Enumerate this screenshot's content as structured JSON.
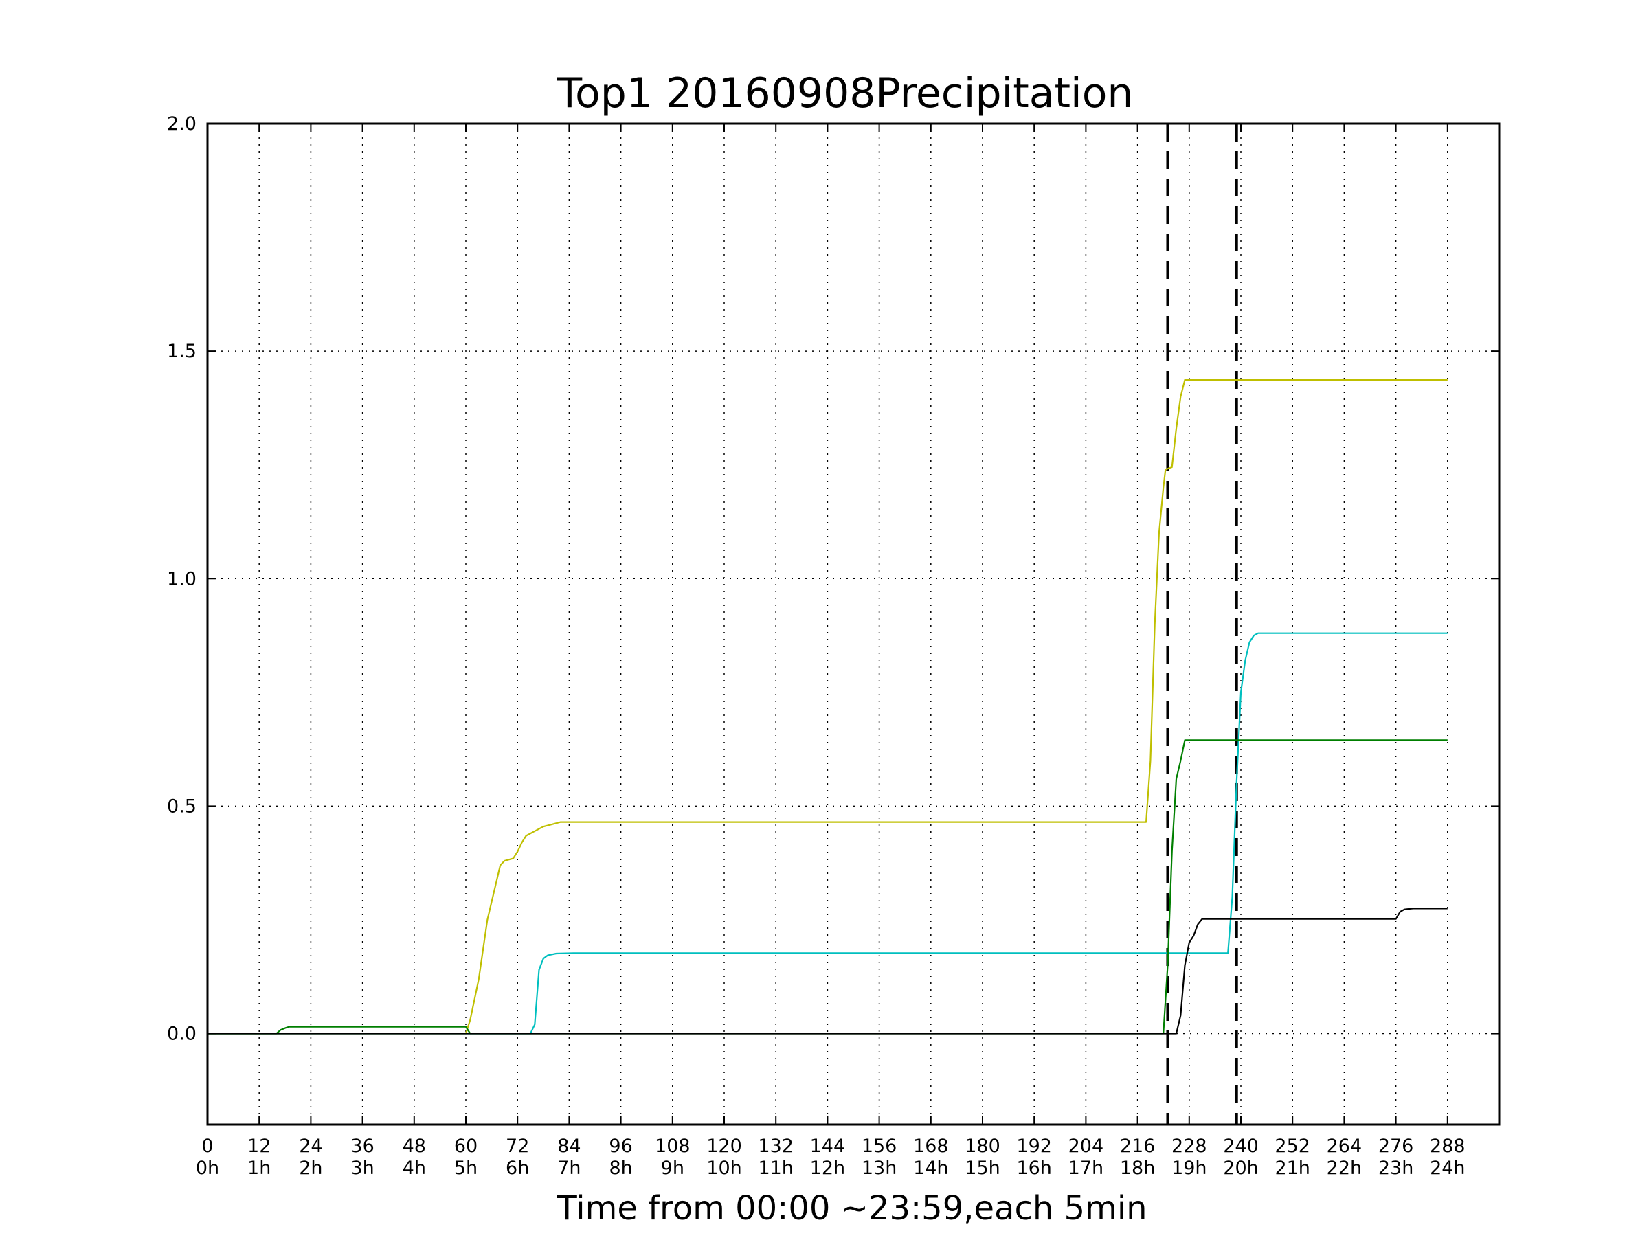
{
  "chart_data": {
    "type": "line",
    "title": "Top1 20160908Precipitation",
    "xlabel": "Time from 00:00 ~23:59,each 5min",
    "ylabel": "",
    "xlim": [
      0,
      300
    ],
    "ylim": [
      -0.2,
      2.0
    ],
    "grid": true,
    "grid_style": "dotted",
    "legend": "none",
    "x_ticks": [
      {
        "value": 0,
        "label1": "0",
        "label2": "0h"
      },
      {
        "value": 12,
        "label1": "12",
        "label2": "1h"
      },
      {
        "value": 24,
        "label1": "24",
        "label2": "2h"
      },
      {
        "value": 36,
        "label1": "36",
        "label2": "3h"
      },
      {
        "value": 48,
        "label1": "48",
        "label2": "4h"
      },
      {
        "value": 60,
        "label1": "60",
        "label2": "5h"
      },
      {
        "value": 72,
        "label1": "72",
        "label2": "6h"
      },
      {
        "value": 84,
        "label1": "84",
        "label2": "7h"
      },
      {
        "value": 96,
        "label1": "96",
        "label2": "8h"
      },
      {
        "value": 108,
        "label1": "108",
        "label2": "9h"
      },
      {
        "value": 120,
        "label1": "120",
        "label2": "10h"
      },
      {
        "value": 132,
        "label1": "132",
        "label2": "11h"
      },
      {
        "value": 144,
        "label1": "144",
        "label2": "12h"
      },
      {
        "value": 156,
        "label1": "156",
        "label2": "13h"
      },
      {
        "value": 168,
        "label1": "168",
        "label2": "14h"
      },
      {
        "value": 180,
        "label1": "180",
        "label2": "15h"
      },
      {
        "value": 192,
        "label1": "192",
        "label2": "16h"
      },
      {
        "value": 204,
        "label1": "204",
        "label2": "17h"
      },
      {
        "value": 216,
        "label1": "216",
        "label2": "18h"
      },
      {
        "value": 228,
        "label1": "228",
        "label2": "19h"
      },
      {
        "value": 240,
        "label1": "240",
        "label2": "20h"
      },
      {
        "value": 252,
        "label1": "252",
        "label2": "21h"
      },
      {
        "value": 264,
        "label1": "264",
        "label2": "22h"
      },
      {
        "value": 276,
        "label1": "276",
        "label2": "23h"
      },
      {
        "value": 288,
        "label1": "288",
        "label2": "24h"
      }
    ],
    "y_ticks": [
      {
        "value": 0.0,
        "label": "0.0"
      },
      {
        "value": 0.5,
        "label": "0.5"
      },
      {
        "value": 1.0,
        "label": "1.0"
      },
      {
        "value": 1.5,
        "label": "1.5"
      },
      {
        "value": 2.0,
        "label": "2.0"
      }
    ],
    "vlines": [
      {
        "x": 223,
        "style": "dashed",
        "color": "#000000"
      },
      {
        "x": 239,
        "style": "dashed",
        "color": "#000000"
      }
    ],
    "series": [
      {
        "color": "#bfbf00",
        "points": [
          [
            0,
            0
          ],
          [
            60,
            0
          ],
          [
            61,
            0.03
          ],
          [
            63,
            0.12
          ],
          [
            65,
            0.25
          ],
          [
            68,
            0.37
          ],
          [
            69,
            0.38
          ],
          [
            71,
            0.385
          ],
          [
            72,
            0.4
          ],
          [
            73,
            0.42
          ],
          [
            74,
            0.435
          ],
          [
            76,
            0.445
          ],
          [
            78,
            0.455
          ],
          [
            80,
            0.46
          ],
          [
            82,
            0.465
          ],
          [
            218,
            0.465
          ],
          [
            219,
            0.6
          ],
          [
            220,
            0.9
          ],
          [
            221,
            1.1
          ],
          [
            222,
            1.2
          ],
          [
            222.5,
            1.24
          ],
          [
            224,
            1.245
          ],
          [
            225,
            1.33
          ],
          [
            226,
            1.4
          ],
          [
            227,
            1.437
          ],
          [
            288,
            1.437
          ]
        ]
      },
      {
        "color": "#00bfbf",
        "points": [
          [
            0,
            0
          ],
          [
            75,
            0
          ],
          [
            76,
            0.02
          ],
          [
            77,
            0.14
          ],
          [
            78,
            0.165
          ],
          [
            79,
            0.172
          ],
          [
            81,
            0.176
          ],
          [
            85,
            0.177
          ],
          [
            237,
            0.177
          ],
          [
            238,
            0.3
          ],
          [
            239,
            0.55
          ],
          [
            240,
            0.75
          ],
          [
            241,
            0.82
          ],
          [
            242,
            0.86
          ],
          [
            243,
            0.875
          ],
          [
            244,
            0.88
          ],
          [
            288,
            0.88
          ]
        ]
      },
      {
        "color": "#007f00",
        "points": [
          [
            0,
            0
          ],
          [
            16,
            0
          ],
          [
            17,
            0.008
          ],
          [
            18,
            0.012
          ],
          [
            19,
            0.015
          ],
          [
            60,
            0.015
          ],
          [
            61,
            0
          ],
          [
            222,
            0
          ],
          [
            223,
            0.15
          ],
          [
            224,
            0.4
          ],
          [
            225,
            0.56
          ],
          [
            226,
            0.6
          ],
          [
            227,
            0.645
          ],
          [
            288,
            0.645
          ]
        ]
      },
      {
        "color": "#000000",
        "points": [
          [
            0,
            0
          ],
          [
            225,
            0
          ],
          [
            226,
            0.04
          ],
          [
            227,
            0.15
          ],
          [
            228,
            0.2
          ],
          [
            229,
            0.215
          ],
          [
            230,
            0.24
          ],
          [
            231,
            0.252
          ],
          [
            276,
            0.252
          ],
          [
            277,
            0.268
          ],
          [
            278,
            0.273
          ],
          [
            280,
            0.275
          ],
          [
            288,
            0.275
          ]
        ]
      }
    ]
  }
}
